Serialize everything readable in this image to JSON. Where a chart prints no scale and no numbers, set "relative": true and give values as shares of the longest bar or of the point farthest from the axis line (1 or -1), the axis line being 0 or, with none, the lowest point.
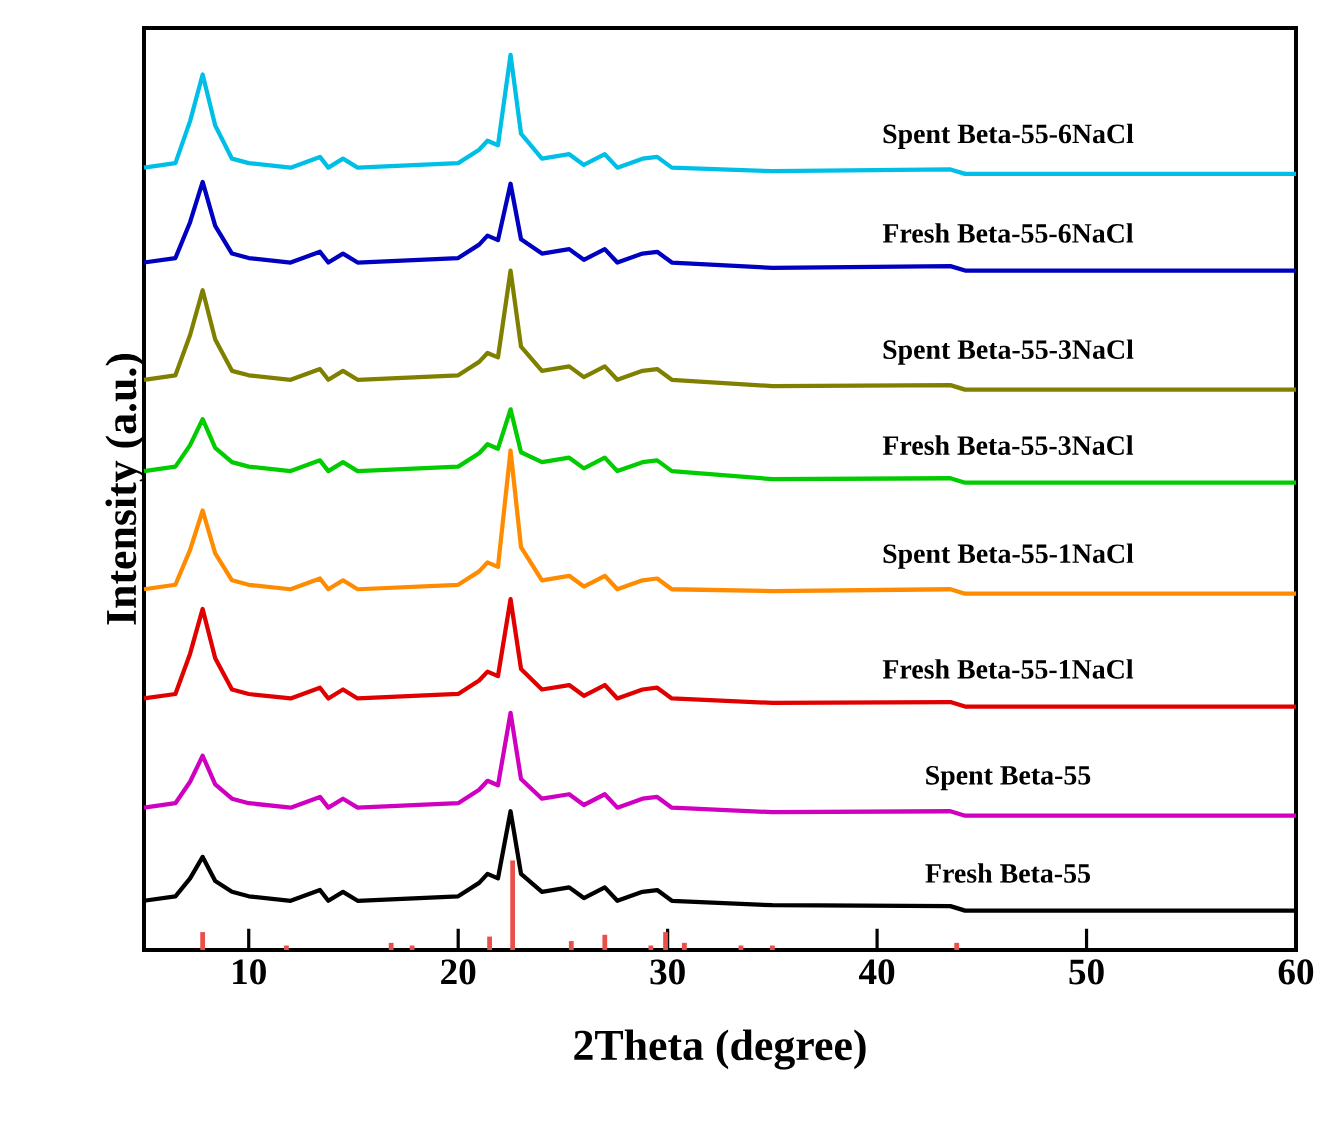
{
  "chart_data": {
    "type": "line",
    "xlabel": "2Theta (degree)",
    "ylabel": "Intensity (a.u.)",
    "relative": true,
    "xlim": [
      5,
      60
    ],
    "xticks": [
      10,
      20,
      30,
      40,
      50,
      60
    ],
    "grid": false,
    "marker": "none",
    "line_style": "solid",
    "x": [
      5,
      6.5,
      7.2,
      7.8,
      8.4,
      9.2,
      10,
      12,
      13.4,
      13.8,
      14.5,
      15.2,
      20,
      21.0,
      21.4,
      21.9,
      22.5,
      23.0,
      24,
      25.3,
      26,
      27.0,
      27.6,
      28.8,
      29.5,
      30.2,
      35,
      43.5,
      44.2,
      50,
      60
    ],
    "series": [
      {
        "name": "Spent Beta-55-6NaCl",
        "color": "#00bfe6",
        "values": [
          0.874,
          0.879,
          0.926,
          0.978,
          0.921,
          0.884,
          0.879,
          0.874,
          0.886,
          0.874,
          0.884,
          0.874,
          0.879,
          0.894,
          0.904,
          0.899,
          1.0,
          0.912,
          0.884,
          0.889,
          0.877,
          0.889,
          0.874,
          0.884,
          0.886,
          0.874,
          0.87,
          0.872,
          0.867,
          0.867,
          0.867
        ]
      },
      {
        "name": "Fresh Beta-55-6NaCl",
        "color": "#0000c0",
        "values": [
          0.768,
          0.773,
          0.813,
          0.858,
          0.809,
          0.778,
          0.773,
          0.768,
          0.78,
          0.768,
          0.778,
          0.768,
          0.773,
          0.788,
          0.798,
          0.793,
          0.856,
          0.794,
          0.778,
          0.783,
          0.771,
          0.783,
          0.768,
          0.778,
          0.78,
          0.768,
          0.762,
          0.764,
          0.759,
          0.759,
          0.759
        ]
      },
      {
        "name": "Spent Beta-55-3NaCl",
        "color": "#808000",
        "values": [
          0.637,
          0.642,
          0.687,
          0.737,
          0.682,
          0.647,
          0.642,
          0.637,
          0.649,
          0.637,
          0.647,
          0.637,
          0.642,
          0.657,
          0.667,
          0.662,
          0.759,
          0.674,
          0.647,
          0.652,
          0.64,
          0.652,
          0.637,
          0.647,
          0.649,
          0.637,
          0.63,
          0.631,
          0.626,
          0.626,
          0.626
        ]
      },
      {
        "name": "Fresh Beta-55-3NaCl",
        "color": "#00cc00",
        "values": [
          0.535,
          0.54,
          0.564,
          0.593,
          0.561,
          0.545,
          0.54,
          0.535,
          0.547,
          0.535,
          0.545,
          0.535,
          0.54,
          0.555,
          0.565,
          0.56,
          0.604,
          0.556,
          0.545,
          0.55,
          0.538,
          0.55,
          0.535,
          0.545,
          0.547,
          0.535,
          0.526,
          0.527,
          0.522,
          0.522,
          0.522
        ]
      },
      {
        "name": "Spent Beta-55-1NaCl",
        "color": "#ff8c00",
        "values": [
          0.403,
          0.408,
          0.447,
          0.491,
          0.443,
          0.413,
          0.408,
          0.403,
          0.415,
          0.403,
          0.413,
          0.403,
          0.408,
          0.423,
          0.433,
          0.428,
          0.558,
          0.45,
          0.413,
          0.418,
          0.406,
          0.418,
          0.403,
          0.413,
          0.415,
          0.403,
          0.401,
          0.403,
          0.398,
          0.398,
          0.398
        ]
      },
      {
        "name": "Fresh Beta-55-1NaCl",
        "color": "#e00000",
        "values": [
          0.281,
          0.286,
          0.331,
          0.381,
          0.326,
          0.291,
          0.286,
          0.281,
          0.293,
          0.281,
          0.291,
          0.281,
          0.286,
          0.301,
          0.311,
          0.306,
          0.392,
          0.314,
          0.291,
          0.296,
          0.284,
          0.296,
          0.281,
          0.291,
          0.293,
          0.281,
          0.276,
          0.277,
          0.272,
          0.272,
          0.272
        ]
      },
      {
        "name": "Spent Beta-55",
        "color": "#d000c0",
        "values": [
          0.159,
          0.164,
          0.188,
          0.217,
          0.185,
          0.169,
          0.164,
          0.159,
          0.171,
          0.159,
          0.169,
          0.159,
          0.164,
          0.179,
          0.189,
          0.184,
          0.265,
          0.191,
          0.169,
          0.174,
          0.162,
          0.174,
          0.159,
          0.169,
          0.171,
          0.159,
          0.154,
          0.155,
          0.15,
          0.15,
          0.15
        ]
      },
      {
        "name": "Fresh Beta-55",
        "color": "#000000",
        "values": [
          0.055,
          0.06,
          0.08,
          0.104,
          0.077,
          0.065,
          0.06,
          0.055,
          0.067,
          0.055,
          0.065,
          0.055,
          0.06,
          0.075,
          0.085,
          0.08,
          0.155,
          0.085,
          0.065,
          0.07,
          0.058,
          0.07,
          0.055,
          0.065,
          0.067,
          0.055,
          0.05,
          0.049,
          0.044,
          0.044,
          0.044
        ]
      },
      {
        "type": "bar",
        "color": "#e8504a",
        "x": [
          7.8,
          11.8,
          16.8,
          17.8,
          21.5,
          22.6,
          25.4,
          27.0,
          29.2,
          29.9,
          30.8,
          33.5,
          35.0,
          43.8
        ],
        "values": [
          0.02,
          0.005,
          0.008,
          0.005,
          0.015,
          0.1,
          0.01,
          0.017,
          0.005,
          0.02,
          0.008,
          0.005,
          0.005,
          0.008
        ]
      }
    ]
  }
}
